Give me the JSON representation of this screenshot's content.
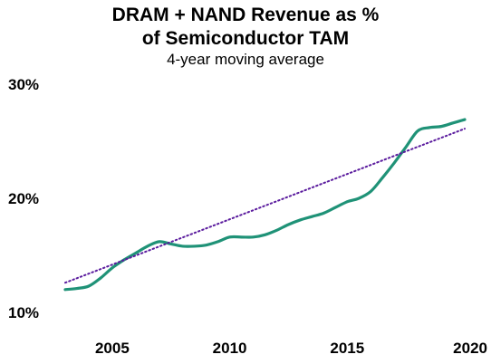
{
  "chart_data": {
    "type": "line",
    "title": "DRAM + NAND Revenue as % of Semiconductor TAM",
    "title_line1": "DRAM + NAND Revenue as %",
    "title_line2": "of Semiconductor TAM",
    "subtitle": "4-year moving average",
    "xlabel": "",
    "ylabel": "",
    "xlim": [
      2003,
      2020
    ],
    "ylim": [
      10,
      30
    ],
    "x_ticks": [
      2005,
      2010,
      2015,
      2020
    ],
    "x_tick_labels": [
      "2005",
      "2010",
      "2015",
      "2020"
    ],
    "y_ticks": [
      10,
      20,
      30
    ],
    "y_tick_labels": [
      "10%",
      "20%",
      "30%"
    ],
    "grid": false,
    "legend": "none",
    "series": [
      {
        "color": "#1f9277",
        "style": "solid",
        "x": [
          2003,
          2003.5,
          2004,
          2004.5,
          2005,
          2005.5,
          2006,
          2006.5,
          2007,
          2007.5,
          2008,
          2008.5,
          2009,
          2009.5,
          2010,
          2010.5,
          2011,
          2011.5,
          2012,
          2012.5,
          2013,
          2013.5,
          2014,
          2014.5,
          2015,
          2015.5,
          2016,
          2016.5,
          2017,
          2017.5,
          2018,
          2018.5,
          2019,
          2019.5,
          2020
        ],
        "values": [
          12.0,
          12.1,
          12.3,
          13.0,
          13.9,
          14.6,
          15.2,
          15.8,
          16.2,
          16.0,
          15.8,
          15.8,
          15.9,
          16.2,
          16.6,
          16.6,
          16.6,
          16.8,
          17.2,
          17.7,
          18.1,
          18.4,
          18.7,
          19.2,
          19.7,
          20.0,
          20.6,
          21.8,
          23.1,
          24.5,
          25.9,
          26.2,
          26.3,
          26.6,
          26.9
        ]
      },
      {
        "color": "#5b1c9e",
        "style": "dotted",
        "x": [
          2003,
          2020
        ],
        "values": [
          12.6,
          26.1
        ]
      }
    ]
  }
}
